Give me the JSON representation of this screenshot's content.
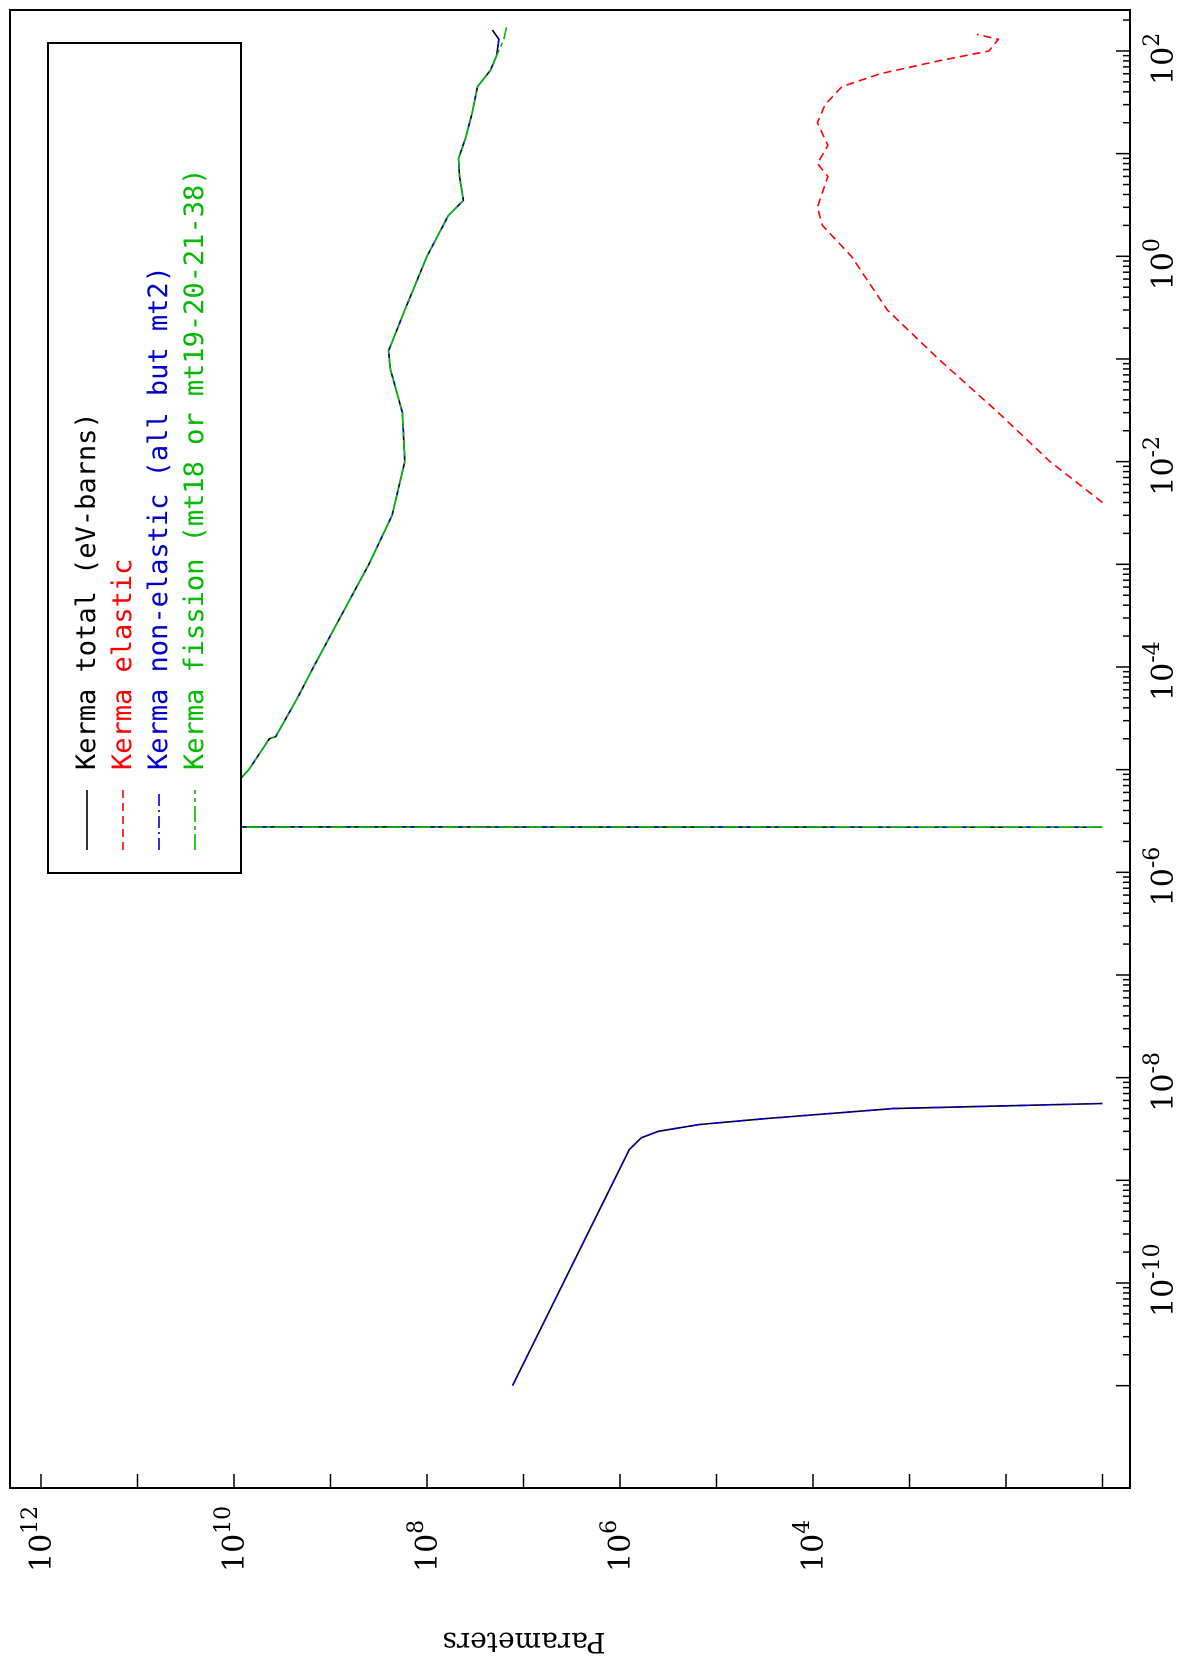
{
  "chart_data": {
    "type": "line",
    "title": "",
    "xlabel": "",
    "ylabel": "Parameters",
    "x_scale": "log",
    "y_scale": "log",
    "xlim": [
      1e-11,
      200
    ],
    "ylim": [
      10,
      10000000000000.0
    ],
    "orientation": "rotated 90 degrees clockwise",
    "grid": false,
    "x_ticks": [
      {
        "mantissa": "10",
        "exp": "-10",
        "value": 1e-10
      },
      {
        "mantissa": "10",
        "exp": "-8",
        "value": 1e-08
      },
      {
        "mantissa": "10",
        "exp": "-6",
        "value": 1e-06
      },
      {
        "mantissa": "10",
        "exp": "-4",
        "value": 0.0001
      },
      {
        "mantissa": "10",
        "exp": "-2",
        "value": 0.01
      },
      {
        "mantissa": "10",
        "exp": "0",
        "value": 1
      },
      {
        "mantissa": "10",
        "exp": "2",
        "value": 100
      }
    ],
    "y_ticks": [
      {
        "mantissa": "10",
        "exp": "4",
        "value": 10000.0
      },
      {
        "mantissa": "10",
        "exp": "6",
        "value": 1000000.0
      },
      {
        "mantissa": "10",
        "exp": "8",
        "value": 100000000.0
      },
      {
        "mantissa": "10",
        "exp": "10",
        "value": 10000000000.0
      },
      {
        "mantissa": "10",
        "exp": "12",
        "value": 1000000000000.0
      }
    ],
    "legend": {
      "placement": "top-left",
      "entries": [
        {
          "line": "——",
          "prefix": "Kerma",
          "label": "total  (eV-barns)",
          "color": "#000000",
          "dash": "solid"
        },
        {
          "line": "----",
          "prefix": "Kerma",
          "label": "elastic",
          "color": "#ff0000",
          "dash": "dashed"
        },
        {
          "line": "-·-·-",
          "prefix": "Kerma",
          "label": "non-elastic (all but mt2)",
          "color": "#0000cc",
          "dash": "dashdot"
        },
        {
          "line": "—·—",
          "prefix": "Kerma",
          "label": "fission (mt18 or mt19-20-21-38)",
          "color": "#00bb00",
          "dash": "longdash"
        }
      ]
    },
    "series": [
      {
        "name": "Kerma total",
        "color": "#000000",
        "dash": "solid",
        "segments": [
          [
            [
              1e-11,
              13000000.0
            ],
            [
              2e-09,
              800000.0
            ],
            [
              2.6e-09,
              600000.0
            ],
            [
              3e-09,
              400000.0
            ],
            [
              3.5e-09,
              150000.0
            ],
            [
              4e-09,
              30000.0
            ],
            [
              5e-09,
              1500
            ],
            [
              5.6e-09,
              10
            ]
          ],
          [
            [
              2.75e-06,
              10
            ],
            [
              2.77e-06,
              24000000000.0
            ],
            [
              3e-06,
              19000000000.0
            ],
            [
              4e-06,
              13000000000.0
            ],
            [
              6.5e-06,
              12500000000.0
            ],
            [
              7e-06,
              10000000000.0
            ],
            [
              1e-05,
              7000000000.0
            ],
            [
              2e-05,
              4300000000.0
            ],
            [
              2.1e-05,
              3700000000.0
            ],
            [
              5e-05,
              2200000000.0
            ],
            [
              0.0001,
              1500000000.0
            ],
            [
              0.0003,
              800000000.0
            ],
            [
              0.001,
              400000000.0
            ],
            [
              0.003,
              230000000.0
            ],
            [
              0.01,
              170000000.0
            ],
            [
              0.03,
              180000000.0
            ],
            [
              0.08,
              240000000.0
            ],
            [
              0.12,
              250000000.0
            ],
            [
              0.3,
              170000000.0
            ],
            [
              1,
              100000000.0
            ],
            [
              2.5,
              60000000.0
            ],
            [
              3.5,
              42000000.0
            ],
            [
              6,
              46000000.0
            ],
            [
              9,
              47000000.0
            ],
            [
              14,
              40000000.0
            ],
            [
              25,
              34000000.0
            ],
            [
              45,
              30000000.0
            ],
            [
              65,
              22000000.0
            ],
            [
              90,
              19000000.0
            ],
            [
              130,
              18000000.0
            ],
            [
              160,
              21000000.0
            ]
          ]
        ]
      },
      {
        "name": "Kerma elastic",
        "color": "#ff0000",
        "dash": "dashed",
        "segments": [
          [
            [
              0.004,
              10
            ],
            [
              0.01,
              35
            ],
            [
              0.03,
              120
            ],
            [
              0.1,
              500
            ],
            [
              0.3,
              1700
            ],
            [
              1,
              4000
            ],
            [
              2,
              8000
            ],
            [
              3,
              9000
            ],
            [
              6,
              7000
            ],
            [
              8,
              9000
            ],
            [
              12,
              7000
            ],
            [
              20,
              9000
            ],
            [
              30,
              7500
            ],
            [
              45,
              5000
            ],
            [
              60,
              2000
            ],
            [
              80,
              500
            ],
            [
              100,
              150
            ],
            [
              130,
              120
            ],
            [
              145,
              200
            ]
          ]
        ]
      },
      {
        "name": "Kerma non-elastic",
        "color": "#0000cc",
        "dash": "dashdot",
        "segments": [
          [
            [
              1e-11,
              13000000.0
            ],
            [
              2e-09,
              800000.0
            ],
            [
              2.6e-09,
              600000.0
            ],
            [
              3e-09,
              400000.0
            ],
            [
              3.5e-09,
              150000.0
            ],
            [
              4e-09,
              30000.0
            ],
            [
              5e-09,
              1500
            ],
            [
              5.6e-09,
              10
            ]
          ],
          [
            [
              2.75e-06,
              10
            ],
            [
              2.77e-06,
              24000000000.0
            ],
            [
              3e-06,
              19000000000.0
            ],
            [
              4e-06,
              13000000000.0
            ],
            [
              6.5e-06,
              12500000000.0
            ],
            [
              7e-06,
              10000000000.0
            ],
            [
              1e-05,
              7000000000.0
            ],
            [
              2e-05,
              4300000000.0
            ],
            [
              2.1e-05,
              3700000000.0
            ],
            [
              5e-05,
              2200000000.0
            ],
            [
              0.0001,
              1500000000.0
            ],
            [
              0.0003,
              800000000.0
            ],
            [
              0.001,
              400000000.0
            ],
            [
              0.003,
              230000000.0
            ],
            [
              0.01,
              170000000.0
            ],
            [
              0.03,
              180000000.0
            ],
            [
              0.08,
              240000000.0
            ],
            [
              0.12,
              250000000.0
            ],
            [
              0.3,
              170000000.0
            ],
            [
              1,
              100000000.0
            ],
            [
              2.5,
              60000000.0
            ],
            [
              3.5,
              42000000.0
            ],
            [
              6,
              46000000.0
            ],
            [
              9,
              47000000.0
            ],
            [
              14,
              40000000.0
            ],
            [
              25,
              34000000.0
            ],
            [
              45,
              30000000.0
            ],
            [
              65,
              22000000.0
            ],
            [
              90,
              19000000.0
            ],
            [
              130,
              18000000.0
            ],
            [
              160,
              21000000.0
            ]
          ]
        ]
      },
      {
        "name": "Kerma fission",
        "color": "#00bb00",
        "dash": "longdash",
        "segments": [
          [
            [
              2.75e-06,
              10
            ],
            [
              2.77e-06,
              24000000000.0
            ],
            [
              3e-06,
              19000000000.0
            ],
            [
              4e-06,
              13000000000.0
            ],
            [
              6.5e-06,
              12500000000.0
            ],
            [
              7e-06,
              10000000000.0
            ],
            [
              1e-05,
              7000000000.0
            ],
            [
              2e-05,
              4300000000.0
            ],
            [
              2.1e-05,
              3700000000.0
            ],
            [
              5e-05,
              2200000000.0
            ],
            [
              0.0001,
              1500000000.0
            ],
            [
              0.0003,
              800000000.0
            ],
            [
              0.001,
              400000000.0
            ],
            [
              0.003,
              230000000.0
            ],
            [
              0.01,
              170000000.0
            ],
            [
              0.03,
              180000000.0
            ],
            [
              0.08,
              240000000.0
            ],
            [
              0.12,
              250000000.0
            ],
            [
              0.3,
              170000000.0
            ],
            [
              1,
              100000000.0
            ],
            [
              2.5,
              60000000.0
            ],
            [
              3.5,
              42000000.0
            ],
            [
              6,
              46000000.0
            ],
            [
              9,
              47000000.0
            ],
            [
              14,
              40000000.0
            ],
            [
              25,
              34000000.0
            ],
            [
              45,
              30000000.0
            ],
            [
              65,
              22000000.0
            ],
            [
              90,
              19000000.0
            ],
            [
              130,
              16000000.0
            ],
            [
              170,
              15000000.0
            ]
          ]
        ]
      }
    ]
  }
}
